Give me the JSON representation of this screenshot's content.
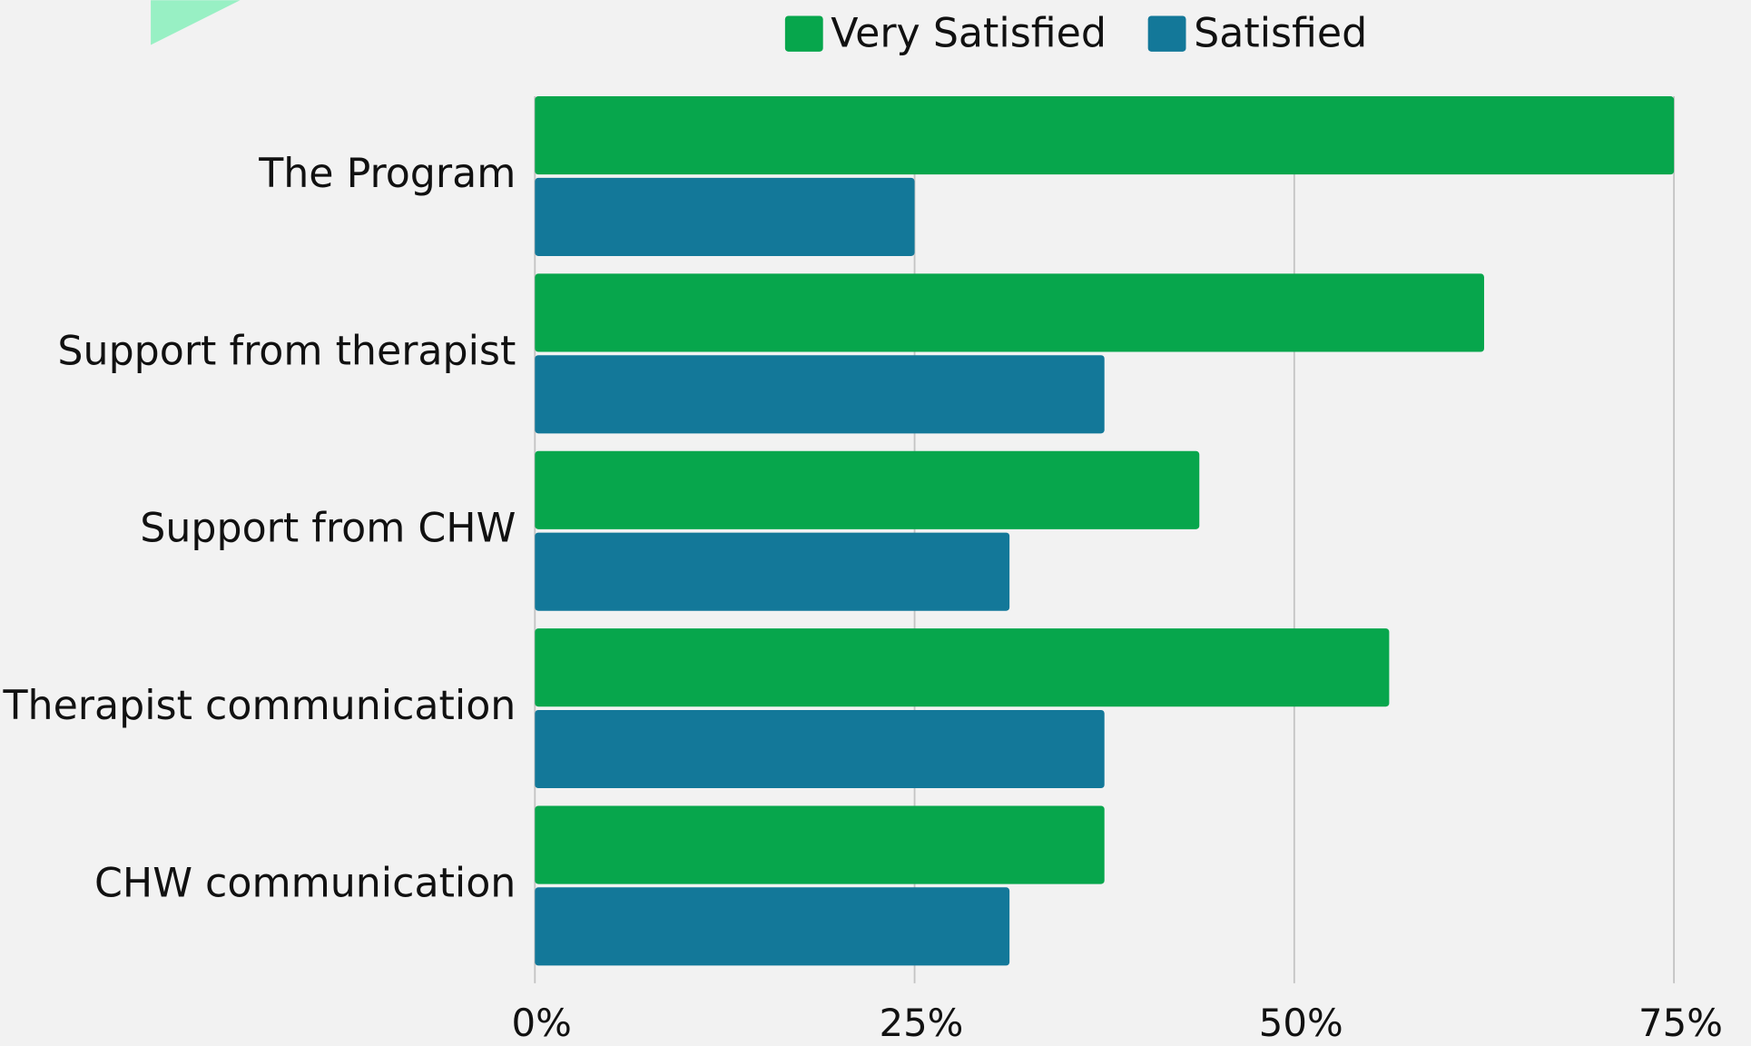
{
  "chart_data": {
    "type": "bar",
    "orientation": "horizontal",
    "categories": [
      "The Program",
      "Support from therapist",
      "Support from CHW",
      "Therapist communication",
      "CHW communication"
    ],
    "series": [
      {
        "name": "Very Satisfied",
        "color": "#07a64c",
        "values": [
          75,
          62.5,
          43.75,
          56.25,
          37.5
        ]
      },
      {
        "name": "Satisfied",
        "color": "#137899",
        "values": [
          25,
          37.5,
          31.25,
          37.5,
          31.25
        ]
      }
    ],
    "xlim": [
      0,
      75
    ],
    "xticks": [
      {
        "value": 0,
        "label": "0%"
      },
      {
        "value": 25,
        "label": "25%"
      },
      {
        "value": 50,
        "label": "50%"
      },
      {
        "value": 75,
        "label": "75%"
      }
    ],
    "grid": true,
    "legend": "top"
  }
}
